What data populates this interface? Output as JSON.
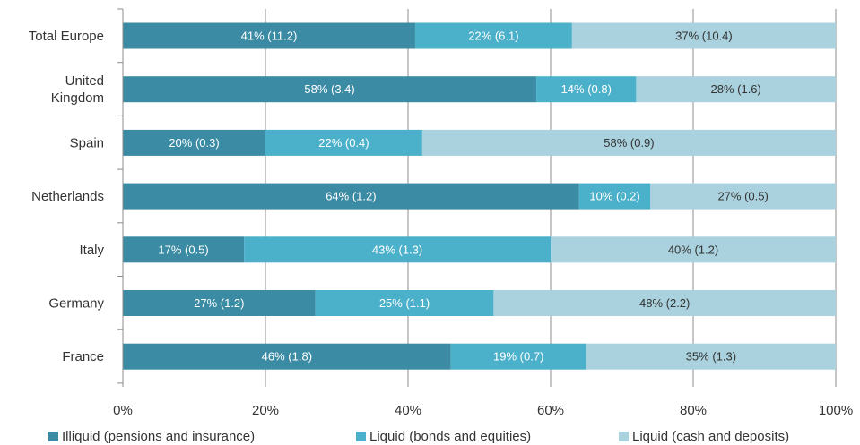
{
  "chart_data": {
    "type": "bar",
    "orientation": "horizontal",
    "stacked": true,
    "categories": [
      "Total Europe",
      "United Kingdom",
      "Spain",
      "Netherlands",
      "Italy",
      "Germany",
      "France"
    ],
    "category_lines": [
      [
        "Total Europe"
      ],
      [
        "United",
        "Kingdom"
      ],
      [
        "Spain"
      ],
      [
        "Netherlands"
      ],
      [
        "Italy"
      ],
      [
        "Germany"
      ],
      [
        "France"
      ]
    ],
    "series": [
      {
        "name": "Illiquid (pensions and insurance)",
        "color": "#3a8ba3",
        "values": [
          41,
          58,
          20,
          64,
          17,
          27,
          46
        ],
        "labels": [
          "41% (11.2)",
          "58% (3.4)",
          "20% (0.3)",
          "64% (1.2)",
          "17% (0.5)",
          "27% (1.2)",
          "46% (1.8)"
        ]
      },
      {
        "name": "Liquid (bonds and equities)",
        "color": "#4bb0c9",
        "values": [
          22,
          14,
          22,
          10,
          43,
          25,
          19
        ],
        "labels": [
          "22% (6.1)",
          "14% (0.8)",
          "22% (0.4)",
          "10% (0.2)",
          "43% (1.3)",
          "25% (1.1)",
          "19% (0.7)"
        ]
      },
      {
        "name": "Liquid (cash and deposits)",
        "color": "#a9d1de",
        "values": [
          37,
          28,
          58,
          27,
          40,
          48,
          35
        ],
        "labels": [
          "37% (10.4)",
          "28% (1.6)",
          "58% (0.9)",
          "27% (0.5)",
          "40% (1.2)",
          "48% (2.2)",
          "35% (1.3)"
        ]
      }
    ],
    "xlim": [
      0,
      100
    ],
    "xticks": [
      0,
      20,
      40,
      60,
      80,
      100
    ],
    "xtick_labels": [
      "0%",
      "20%",
      "40%",
      "60%",
      "80%",
      "100%"
    ],
    "grid": true,
    "legend_position": "bottom",
    "title": "",
    "xlabel": "",
    "ylabel": ""
  }
}
